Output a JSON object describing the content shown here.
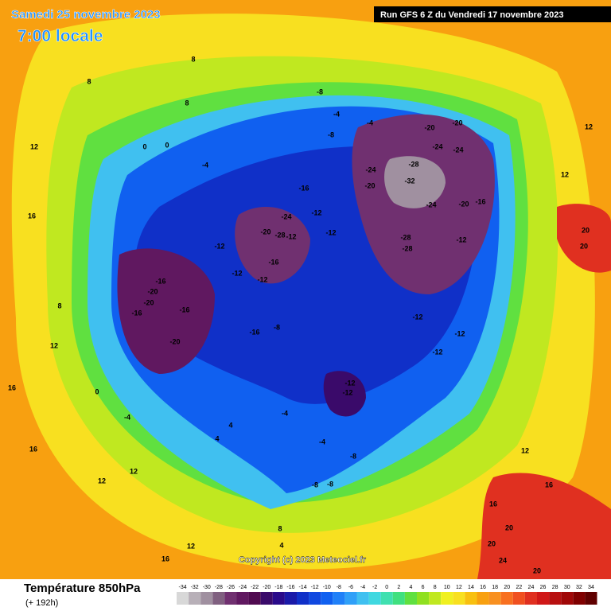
{
  "header": {
    "date": "Samedi 25 novembre 2023",
    "time": "7:00 locale",
    "run": "Run GFS 6 Z du Vendredi 17 novembre 2023"
  },
  "map": {
    "labels": [
      -20,
      -20,
      -24,
      -24,
      -28,
      -32,
      -24,
      -20,
      -24,
      -20,
      -16,
      -28,
      -28,
      -12,
      -24,
      -20,
      -28,
      -12,
      -16,
      -12,
      -12,
      -16,
      -12,
      -12,
      -12,
      -16,
      -20,
      -20,
      -16,
      -16,
      -20,
      -16,
      -8,
      -12,
      -12,
      -12,
      -12,
      -12,
      -8,
      -8,
      -4,
      -4,
      -4,
      8,
      8,
      8,
      0,
      0,
      12,
      16,
      16,
      16,
      12,
      12,
      12,
      16,
      12,
      16,
      16,
      20,
      20,
      24,
      20,
      20,
      20,
      12,
      12,
      4,
      4,
      -4,
      -4,
      -8,
      -8,
      -8,
      8,
      4,
      -4,
      0,
      8,
      12
    ]
  },
  "footer": {
    "copyright": "Copyright (c) 2023 Meteociel.fr",
    "title": "Température 850hPa",
    "subtitle": "(+ 192h)"
  },
  "colorbar": {
    "ticks": [
      -34,
      -32,
      -30,
      -28,
      -26,
      -24,
      -22,
      -20,
      -18,
      -16,
      -14,
      -12,
      -10,
      -8,
      -6,
      -4,
      -2,
      0,
      2,
      4,
      6,
      8,
      10,
      12,
      14,
      16,
      18,
      20,
      22,
      24,
      26,
      28,
      30,
      32,
      34
    ],
    "colors": [
      "#d8d8d8",
      "#b8b0b8",
      "#a090a0",
      "#806080",
      "#703070",
      "#601860",
      "#500a50",
      "#3a0a6a",
      "#2a0a8a",
      "#1a1aa8",
      "#1030c8",
      "#1048e0",
      "#1060f0",
      "#2080f8",
      "#30a0f8",
      "#40c0f0",
      "#40d8e0",
      "#40e0b0",
      "#40e080",
      "#60e040",
      "#90e020",
      "#c0e820",
      "#f0f020",
      "#f8e020",
      "#f8c010",
      "#f8a010",
      "#f89020",
      "#f87020",
      "#f05020",
      "#e03020",
      "#d01818",
      "#b81010",
      "#a00808",
      "#800000",
      "#600000"
    ]
  }
}
